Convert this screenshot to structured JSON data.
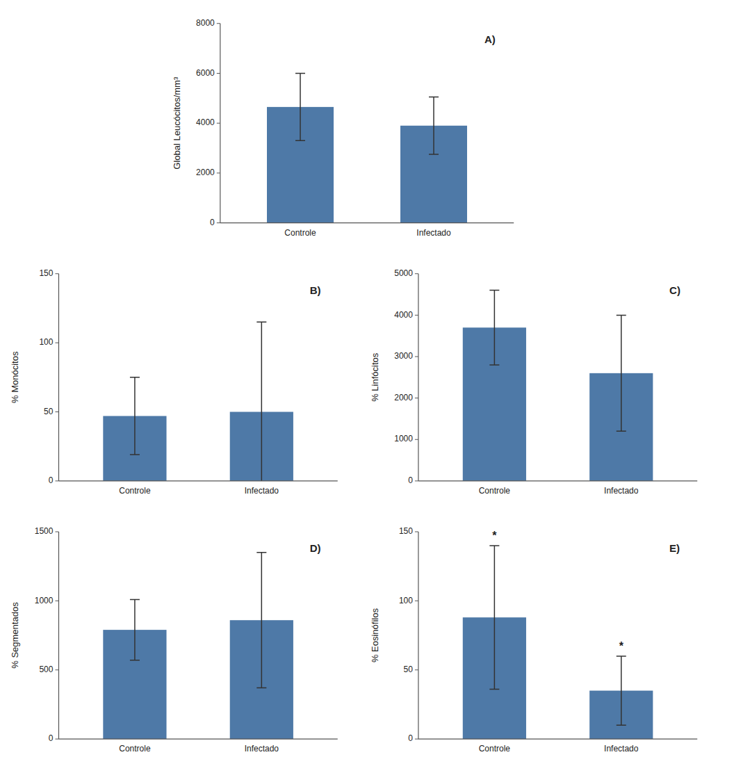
{
  "chart_data": [
    {
      "type": "bar",
      "title": "A)",
      "ylabel": "Global Leucócitos/mm³",
      "categories": [
        "Controle",
        "Infectado"
      ],
      "values": [
        4650,
        3900
      ],
      "errors": [
        1350,
        1150
      ],
      "ylim": [
        0,
        8000
      ],
      "yticks": [
        0,
        2000,
        4000,
        6000,
        8000
      ],
      "color": "#4e79a7"
    },
    {
      "type": "bar",
      "title": "B)",
      "ylabel": "% Monócitos",
      "categories": [
        "Controle",
        "Infectado"
      ],
      "values": [
        47,
        50
      ],
      "errors": [
        28,
        65
      ],
      "ylim": [
        0,
        150
      ],
      "yticks": [
        0,
        50,
        100,
        150
      ],
      "color": "#4e79a7"
    },
    {
      "type": "bar",
      "title": "C)",
      "ylabel": "% Linfócitos",
      "categories": [
        "Controle",
        "Infectado"
      ],
      "values": [
        3700,
        2600
      ],
      "errors": [
        900,
        1400
      ],
      "ylim": [
        0,
        5000
      ],
      "yticks": [
        0,
        1000,
        2000,
        3000,
        4000,
        5000
      ],
      "color": "#4e79a7"
    },
    {
      "type": "bar",
      "title": "D)",
      "ylabel": "% Segmentados",
      "categories": [
        "Controle",
        "Infectado"
      ],
      "values": [
        790,
        860
      ],
      "errors": [
        220,
        490
      ],
      "ylim": [
        0,
        1500
      ],
      "yticks": [
        0,
        500,
        1000,
        1500
      ],
      "color": "#4e79a7"
    },
    {
      "type": "bar",
      "title": "E)",
      "ylabel": "% Eosinófilos",
      "categories": [
        "Controle",
        "Infectado"
      ],
      "values": [
        88,
        35
      ],
      "errors": [
        52,
        25
      ],
      "ylim": [
        0,
        150
      ],
      "yticks": [
        0,
        50,
        100,
        150
      ],
      "annotations": [
        "*",
        "*"
      ],
      "color": "#4e79a7"
    }
  ]
}
